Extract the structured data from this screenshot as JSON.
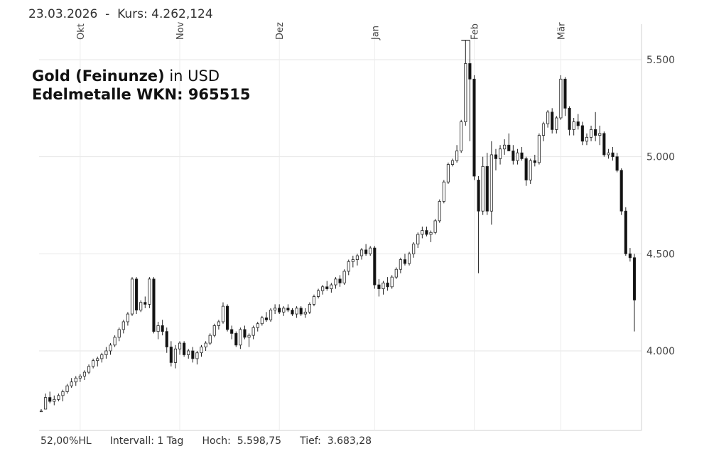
{
  "header": {
    "date": "23.03.2026",
    "separator": "-",
    "kurs_label": "Kurs:",
    "kurs_value": "4.262,124"
  },
  "title": {
    "instrument_bold": "Gold (Feinunze)",
    "currency_suffix": "in USD",
    "subtitle": "Edelmetalle WKN: 965515"
  },
  "footer": {
    "hl": "52,00%HL",
    "interval": "Intervall: 1 Tag",
    "high": "Hoch:  5.598,75",
    "low": "Tief:  3.683,28"
  },
  "chart_data": {
    "type": "candlestick",
    "interval": "1 Tag",
    "ylim": [
      3683.28,
      5598.75
    ],
    "y_ticks": [
      4000,
      4500,
      5000,
      5500
    ],
    "y_tick_labels": [
      "4.000",
      "4.500",
      "5.000",
      "5.500"
    ],
    "month_labels": [
      "Okt",
      "Nov",
      "Dez",
      "Jan",
      "Feb",
      "Mär"
    ],
    "month_tick_index": [
      9,
      32,
      55,
      77,
      100,
      120
    ],
    "grid": true,
    "candles": [
      [
        3690,
        3700,
        3690,
        3690
      ],
      [
        3700,
        3780,
        3700,
        3760
      ],
      [
        3760,
        3790,
        3730,
        3740
      ],
      [
        3740,
        3770,
        3720,
        3750
      ],
      [
        3750,
        3780,
        3740,
        3770
      ],
      [
        3770,
        3800,
        3740,
        3790
      ],
      [
        3790,
        3830,
        3780,
        3820
      ],
      [
        3820,
        3860,
        3810,
        3840
      ],
      [
        3840,
        3870,
        3820,
        3860
      ],
      [
        3860,
        3880,
        3840,
        3870
      ],
      [
        3870,
        3900,
        3850,
        3890
      ],
      [
        3890,
        3930,
        3880,
        3920
      ],
      [
        3920,
        3960,
        3910,
        3950
      ],
      [
        3950,
        3970,
        3920,
        3960
      ],
      [
        3960,
        3990,
        3940,
        3980
      ],
      [
        3980,
        4020,
        3960,
        4000
      ],
      [
        4000,
        4040,
        3980,
        4030
      ],
      [
        4030,
        4080,
        4020,
        4070
      ],
      [
        4070,
        4120,
        4050,
        4110
      ],
      [
        4110,
        4160,
        4090,
        4150
      ],
      [
        4150,
        4200,
        4130,
        4190
      ],
      [
        4190,
        4380,
        4180,
        4370
      ],
      [
        4370,
        4380,
        4190,
        4210
      ],
      [
        4210,
        4260,
        4200,
        4250
      ],
      [
        4250,
        4280,
        4220,
        4240
      ],
      [
        4240,
        4380,
        4220,
        4370
      ],
      [
        4370,
        4380,
        4090,
        4100
      ],
      [
        4100,
        4150,
        4060,
        4130
      ],
      [
        4130,
        4160,
        4080,
        4100
      ],
      [
        4100,
        4120,
        3990,
        4020
      ],
      [
        4020,
        4050,
        3920,
        3940
      ],
      [
        3940,
        4030,
        3910,
        4010
      ],
      [
        4010,
        4050,
        3980,
        4040
      ],
      [
        4040,
        4050,
        3970,
        3980
      ],
      [
        3980,
        4010,
        3960,
        4000
      ],
      [
        4000,
        4020,
        3940,
        3960
      ],
      [
        3960,
        4000,
        3930,
        3990
      ],
      [
        3990,
        4030,
        3970,
        4020
      ],
      [
        4020,
        4050,
        4000,
        4040
      ],
      [
        4040,
        4090,
        4030,
        4080
      ],
      [
        4080,
        4140,
        4070,
        4130
      ],
      [
        4130,
        4160,
        4110,
        4150
      ],
      [
        4150,
        4250,
        4140,
        4230
      ],
      [
        4230,
        4240,
        4100,
        4110
      ],
      [
        4110,
        4130,
        4060,
        4090
      ],
      [
        4090,
        4100,
        4020,
        4030
      ],
      [
        4030,
        4120,
        4010,
        4110
      ],
      [
        4110,
        4130,
        4060,
        4070
      ],
      [
        4070,
        4090,
        4020,
        4080
      ],
      [
        4080,
        4130,
        4060,
        4120
      ],
      [
        4120,
        4150,
        4100,
        4140
      ],
      [
        4140,
        4180,
        4130,
        4170
      ],
      [
        4170,
        4200,
        4150,
        4160
      ],
      [
        4160,
        4220,
        4150,
        4210
      ],
      [
        4210,
        4240,
        4190,
        4220
      ],
      [
        4220,
        4240,
        4190,
        4200
      ],
      [
        4200,
        4230,
        4180,
        4220
      ],
      [
        4220,
        4240,
        4200,
        4210
      ],
      [
        4210,
        4220,
        4180,
        4190
      ],
      [
        4190,
        4230,
        4170,
        4220
      ],
      [
        4220,
        4230,
        4180,
        4190
      ],
      [
        4190,
        4220,
        4170,
        4200
      ],
      [
        4200,
        4250,
        4190,
        4240
      ],
      [
        4240,
        4290,
        4230,
        4280
      ],
      [
        4280,
        4320,
        4270,
        4310
      ],
      [
        4310,
        4340,
        4290,
        4330
      ],
      [
        4330,
        4360,
        4310,
        4320
      ],
      [
        4320,
        4350,
        4300,
        4340
      ],
      [
        4340,
        4380,
        4320,
        4370
      ],
      [
        4370,
        4390,
        4330,
        4350
      ],
      [
        4350,
        4420,
        4340,
        4410
      ],
      [
        4410,
        4470,
        4390,
        4460
      ],
      [
        4460,
        4490,
        4430,
        4470
      ],
      [
        4470,
        4500,
        4440,
        4490
      ],
      [
        4490,
        4530,
        4470,
        4520
      ],
      [
        4520,
        4550,
        4490,
        4500
      ],
      [
        4500,
        4540,
        4490,
        4530
      ],
      [
        4530,
        4540,
        4320,
        4340
      ],
      [
        4340,
        4370,
        4280,
        4320
      ],
      [
        4320,
        4360,
        4290,
        4350
      ],
      [
        4350,
        4380,
        4310,
        4330
      ],
      [
        4330,
        4390,
        4320,
        4380
      ],
      [
        4380,
        4430,
        4370,
        4420
      ],
      [
        4420,
        4480,
        4400,
        4470
      ],
      [
        4470,
        4500,
        4440,
        4450
      ],
      [
        4450,
        4510,
        4440,
        4500
      ],
      [
        4500,
        4560,
        4480,
        4550
      ],
      [
        4550,
        4610,
        4530,
        4600
      ],
      [
        4600,
        4640,
        4580,
        4620
      ],
      [
        4620,
        4640,
        4590,
        4600
      ],
      [
        4600,
        4620,
        4560,
        4610
      ],
      [
        4610,
        4680,
        4600,
        4670
      ],
      [
        4670,
        4780,
        4660,
        4770
      ],
      [
        4770,
        4880,
        4760,
        4870
      ],
      [
        4870,
        4970,
        4860,
        4960
      ],
      [
        4960,
        4990,
        4950,
        4980
      ],
      [
        4980,
        5060,
        4970,
        5030
      ],
      [
        5030,
        5190,
        5020,
        5180
      ],
      [
        5180,
        5600,
        5160,
        5480
      ],
      [
        5480,
        5600,
        5080,
        5400
      ],
      [
        5400,
        5420,
        4880,
        4900
      ],
      [
        4880,
        4900,
        4400,
        4720
      ],
      [
        4720,
        5000,
        4700,
        4950
      ],
      [
        4950,
        5020,
        4700,
        4720
      ],
      [
        4720,
        5080,
        4650,
        5010
      ],
      [
        5010,
        5040,
        4930,
        4990
      ],
      [
        4990,
        5060,
        4960,
        5040
      ],
      [
        5040,
        5090,
        5010,
        5060
      ],
      [
        5060,
        5120,
        5040,
        5030
      ],
      [
        5030,
        5060,
        4960,
        4980
      ],
      [
        4980,
        5040,
        4960,
        5020
      ],
      [
        5020,
        5050,
        4980,
        4990
      ],
      [
        4990,
        5000,
        4850,
        4880
      ],
      [
        4880,
        4990,
        4860,
        4980
      ],
      [
        4980,
        5010,
        4950,
        4970
      ],
      [
        4970,
        5120,
        4960,
        5110
      ],
      [
        5110,
        5180,
        5080,
        5170
      ],
      [
        5170,
        5240,
        5150,
        5230
      ],
      [
        5230,
        5250,
        5120,
        5140
      ],
      [
        5140,
        5210,
        5120,
        5200
      ],
      [
        5200,
        5420,
        5190,
        5400
      ],
      [
        5400,
        5410,
        5210,
        5250
      ],
      [
        5250,
        5260,
        5110,
        5140
      ],
      [
        5140,
        5200,
        5110,
        5180
      ],
      [
        5180,
        5220,
        5140,
        5160
      ],
      [
        5160,
        5180,
        5060,
        5080
      ],
      [
        5080,
        5120,
        5060,
        5100
      ],
      [
        5100,
        5160,
        5080,
        5140
      ],
      [
        5140,
        5230,
        5080,
        5110
      ],
      [
        5110,
        5160,
        5060,
        5120
      ],
      [
        5120,
        5130,
        5000,
        5010
      ],
      [
        5010,
        5040,
        4990,
        5020
      ],
      [
        5020,
        5050,
        4980,
        5000
      ],
      [
        5000,
        5020,
        4920,
        4930
      ],
      [
        4930,
        4940,
        4700,
        4720
      ],
      [
        4720,
        4740,
        4490,
        4500
      ],
      [
        4500,
        4530,
        4460,
        4480
      ],
      [
        4480,
        4500,
        4100,
        4262
      ]
    ]
  }
}
